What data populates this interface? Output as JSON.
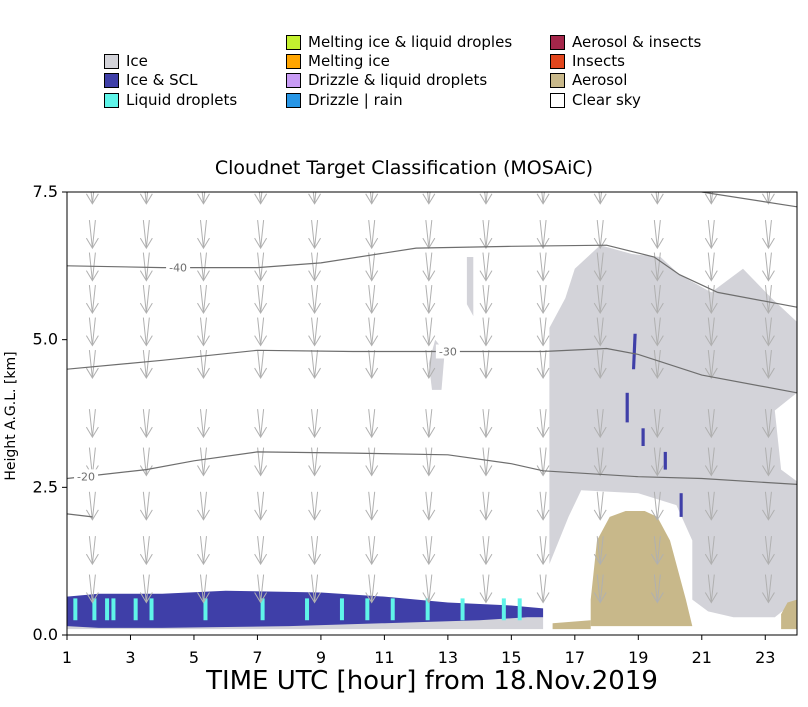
{
  "chart_data": {
    "type": "heatmap",
    "title": "Cloudnet Target Classification (MOSAiC)",
    "xlabel": "TIME UTC [hour] from 18.Nov.2019",
    "ylabel": "Height A.G.L. [km]",
    "xlim": [
      1,
      24
    ],
    "ylim": [
      0,
      7.5
    ],
    "xticks": [
      "1",
      "3",
      "5",
      "7",
      "9",
      "11",
      "13",
      "15",
      "17",
      "19",
      "21",
      "23"
    ],
    "yticks": [
      "0.0",
      "2.5",
      "5.0",
      "7.5"
    ],
    "legend": [
      {
        "label": "Ice",
        "color": "#d3d3d9"
      },
      {
        "label": "Ice & SCL",
        "color": "#3f3fa8"
      },
      {
        "label": "Liquid droplets",
        "color": "#5ff5e9"
      },
      {
        "label": "Melting ice & liquid droples",
        "color": "#c4f02f"
      },
      {
        "label": "Melting ice",
        "color": "#ffa500"
      },
      {
        "label": "Drizzle & liquid droplets",
        "color": "#c89bf5"
      },
      {
        "label": "Drizzle | rain",
        "color": "#2796e6"
      },
      {
        "label": "Aerosol & insects",
        "color": "#a5264a"
      },
      {
        "label": "Insects",
        "color": "#e2461d"
      },
      {
        "label": "Aerosol",
        "color": "#c8b88a"
      },
      {
        "label": "Clear sky",
        "color": "#ffffff"
      }
    ],
    "isotherms": [
      {
        "label": "-40",
        "label_x": 4.5,
        "points": [
          [
            1,
            6.25
          ],
          [
            4,
            6.22
          ],
          [
            7,
            6.22
          ],
          [
            9,
            6.3
          ],
          [
            12,
            6.55
          ],
          [
            15,
            6.58
          ],
          [
            18,
            6.6
          ],
          [
            19.5,
            6.4
          ],
          [
            20.3,
            6.1
          ],
          [
            21.5,
            5.8
          ],
          [
            24,
            5.55
          ]
        ]
      },
      {
        "label": "-30",
        "label_x": 13,
        "points": [
          [
            1,
            4.5
          ],
          [
            4,
            4.65
          ],
          [
            7,
            4.82
          ],
          [
            10,
            4.8
          ],
          [
            13,
            4.8
          ],
          [
            16,
            4.8
          ],
          [
            18,
            4.85
          ],
          [
            19,
            4.75
          ],
          [
            21,
            4.4
          ],
          [
            24,
            4.1
          ]
        ]
      },
      {
        "label": "-20",
        "label_x": 1.6,
        "points": [
          [
            1,
            2.65
          ],
          [
            3.5,
            2.8
          ],
          [
            5,
            2.95
          ],
          [
            7,
            3.1
          ],
          [
            10,
            3.08
          ],
          [
            13,
            3.05
          ],
          [
            15,
            2.9
          ],
          [
            16,
            2.78
          ],
          [
            19,
            2.68
          ],
          [
            21,
            2.65
          ],
          [
            24,
            2.55
          ]
        ]
      },
      {
        "label": "",
        "label_x": null,
        "points": [
          [
            1,
            2.05
          ],
          [
            1.8,
            2.0
          ]
        ]
      },
      {
        "label": "",
        "label_x": null,
        "points": [
          [
            21,
            7.5
          ],
          [
            24,
            7.25
          ]
        ]
      }
    ],
    "regions": [
      {
        "class": "Ice",
        "points": [
          [
            1,
            0.1
          ],
          [
            16,
            0.1
          ],
          [
            16,
            0.3
          ],
          [
            1,
            0.3
          ]
        ]
      },
      {
        "class": "Ice & SCL",
        "points": [
          [
            1,
            0.15
          ],
          [
            2,
            0.12
          ],
          [
            4,
            0.12
          ],
          [
            8,
            0.15
          ],
          [
            11,
            0.2
          ],
          [
            14,
            0.25
          ],
          [
            15.5,
            0.3
          ],
          [
            16,
            0.3
          ],
          [
            16,
            0.45
          ],
          [
            15,
            0.5
          ],
          [
            13,
            0.55
          ],
          [
            11,
            0.65
          ],
          [
            9,
            0.72
          ],
          [
            6,
            0.75
          ],
          [
            4,
            0.7
          ],
          [
            2,
            0.7
          ],
          [
            1,
            0.65
          ]
        ]
      },
      {
        "class": "Ice",
        "points": [
          [
            16.2,
            1.2
          ],
          [
            16.2,
            5.2
          ],
          [
            16.7,
            5.7
          ],
          [
            17,
            6.2
          ],
          [
            17.8,
            6.6
          ],
          [
            18.8,
            6.45
          ],
          [
            19.7,
            6.4
          ],
          [
            20.3,
            6.1
          ],
          [
            21.3,
            5.8
          ],
          [
            22.3,
            6.2
          ],
          [
            23.2,
            5.7
          ],
          [
            24,
            5.3
          ],
          [
            24,
            4.1
          ],
          [
            23.3,
            3.8
          ],
          [
            23.5,
            2.8
          ],
          [
            24,
            2.6
          ],
          [
            24,
            0.6
          ],
          [
            23.3,
            0.3
          ],
          [
            22,
            0.3
          ],
          [
            21.2,
            0.4
          ],
          [
            20.7,
            0.6
          ],
          [
            20.7,
            1.6
          ],
          [
            20.2,
            2.2
          ],
          [
            19,
            2.4
          ],
          [
            17.2,
            2.45
          ],
          [
            16.8,
            2.0
          ]
        ]
      },
      {
        "class": "Ice",
        "points": [
          [
            12.5,
            4.15
          ],
          [
            12.8,
            4.15
          ],
          [
            12.9,
            4.8
          ],
          [
            12.6,
            5.0
          ],
          [
            12.4,
            4.6
          ]
        ]
      },
      {
        "class": "Ice",
        "points": [
          [
            13.6,
            6.4
          ],
          [
            13.8,
            6.4
          ],
          [
            13.8,
            5.4
          ],
          [
            13.6,
            5.6
          ]
        ]
      },
      {
        "class": "Aerosol",
        "points": [
          [
            17.5,
            0.15
          ],
          [
            20.7,
            0.15
          ],
          [
            20.5,
            0.6
          ],
          [
            20,
            1.6
          ],
          [
            19.6,
            2.0
          ],
          [
            19.2,
            2.1
          ],
          [
            18.6,
            2.1
          ],
          [
            18.1,
            2.0
          ],
          [
            17.7,
            1.6
          ],
          [
            17.5,
            0.6
          ]
        ]
      },
      {
        "class": "Aerosol",
        "points": [
          [
            23.5,
            0.1
          ],
          [
            24,
            0.1
          ],
          [
            24,
            0.6
          ],
          [
            23.7,
            0.55
          ],
          [
            23.5,
            0.35
          ]
        ]
      },
      {
        "class": "Aerosol",
        "points": [
          [
            16.3,
            0.1
          ],
          [
            17.5,
            0.1
          ],
          [
            17.5,
            0.25
          ],
          [
            16.3,
            0.2
          ]
        ]
      },
      {
        "class": "Ice & SCL",
        "points": [
          [
            18.8,
            4.5
          ],
          [
            18.9,
            4.5
          ],
          [
            18.95,
            5.1
          ],
          [
            18.85,
            5.1
          ]
        ]
      },
      {
        "class": "Ice & SCL",
        "points": [
          [
            18.6,
            3.6
          ],
          [
            18.7,
            3.6
          ],
          [
            18.7,
            4.1
          ],
          [
            18.6,
            4.1
          ]
        ]
      },
      {
        "class": "Ice & SCL",
        "points": [
          [
            19.1,
            3.2
          ],
          [
            19.2,
            3.2
          ],
          [
            19.2,
            3.5
          ],
          [
            19.1,
            3.5
          ]
        ]
      },
      {
        "class": "Ice & SCL",
        "points": [
          [
            19.8,
            2.8
          ],
          [
            19.9,
            2.8
          ],
          [
            19.9,
            3.1
          ],
          [
            19.8,
            3.1
          ]
        ]
      },
      {
        "class": "Ice & SCL",
        "points": [
          [
            20.3,
            2.0
          ],
          [
            20.4,
            2.0
          ],
          [
            20.4,
            2.4
          ],
          [
            20.3,
            2.4
          ]
        ]
      }
    ],
    "liquid_streaks_x": [
      1.2,
      1.8,
      2.2,
      2.4,
      3.1,
      3.6,
      5.3,
      7.1,
      8.5,
      9.6,
      10.4,
      11.2,
      12.3,
      13.4,
      14.7,
      15.2
    ],
    "wind_arrows_x": [
      1.8,
      3.5,
      5.3,
      7.1,
      8.8,
      10.6,
      12.4,
      14.2,
      16.0,
      17.8,
      19.6,
      21.3,
      23.1
    ],
    "wind_arrows_y": [
      7.3,
      6.55,
      6.0,
      5.45,
      4.9,
      4.35,
      3.35,
      2.7,
      1.95,
      1.2,
      0.55
    ]
  }
}
